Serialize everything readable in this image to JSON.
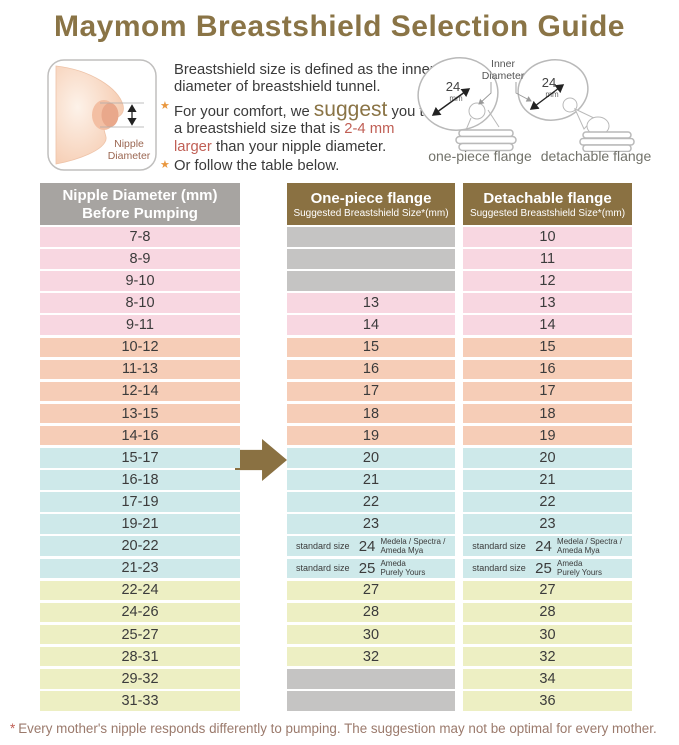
{
  "title": "Maymom Breastshield Selection Guide",
  "info": {
    "illustration": {
      "label_line1": "Nipple",
      "label_line2": "Diameter"
    },
    "lines": [
      {
        "star": false,
        "segments": [
          {
            "text": "Breastshield size is defined as the inner diameter of breastshield tunnel."
          }
        ]
      },
      {
        "star": true,
        "segments": [
          {
            "text": "For your comfort, we "
          },
          {
            "text": "suggest",
            "style": "suggest"
          },
          {
            "text": " you try a breastshield size that is "
          },
          {
            "text": "2-4 mm larger",
            "style": "red"
          },
          {
            "text": " than your nipple diameter."
          }
        ]
      },
      {
        "star": true,
        "segments": [
          {
            "text": "Or follow the table below."
          }
        ]
      }
    ],
    "diagram": {
      "inner_label_line1": "Inner",
      "inner_label_line2": "Diameter",
      "flange1": {
        "size": "24",
        "unit": "mm",
        "label": "one-piece flange"
      },
      "flange2": {
        "size": "24",
        "unit": "mm",
        "label": "detachable flange"
      }
    }
  },
  "table": {
    "headers": {
      "col1_line1": "Nipple Diameter (mm)",
      "col1_line2": "Before Pumping",
      "col2_line1": "One-piece flange",
      "col2_line2": "Suggested Breastshield Size*(mm)",
      "col3_line1": "Detachable flange",
      "col3_line2": "Suggested Breastshield Size*(mm)"
    },
    "rows": [
      {
        "color": "pink",
        "nipple": "7-8",
        "one_piece": null,
        "detachable": "10"
      },
      {
        "color": "pink",
        "nipple": "8-9",
        "one_piece": null,
        "detachable": "11"
      },
      {
        "color": "pink",
        "nipple": "9-10",
        "one_piece": null,
        "detachable": "12"
      },
      {
        "color": "pink",
        "nipple": "8-10",
        "one_piece": "13",
        "detachable": "13"
      },
      {
        "color": "pink",
        "nipple": "9-11",
        "one_piece": "14",
        "detachable": "14"
      },
      {
        "color": "salmon",
        "nipple": "10-12",
        "one_piece": "15",
        "detachable": "15"
      },
      {
        "color": "salmon",
        "nipple": "11-13",
        "one_piece": "16",
        "detachable": "16"
      },
      {
        "color": "salmon",
        "nipple": "12-14",
        "one_piece": "17",
        "detachable": "17"
      },
      {
        "color": "salmon",
        "nipple": "13-15",
        "one_piece": "18",
        "detachable": "18"
      },
      {
        "color": "salmon",
        "nipple": "14-16",
        "one_piece": "19",
        "detachable": "19"
      },
      {
        "color": "blue",
        "nipple": "15-17",
        "one_piece": "20",
        "detachable": "20"
      },
      {
        "color": "blue",
        "nipple": "16-18",
        "one_piece": "21",
        "detachable": "21"
      },
      {
        "color": "blue",
        "nipple": "17-19",
        "one_piece": "22",
        "detachable": "22"
      },
      {
        "color": "blue",
        "nipple": "19-21",
        "one_piece": "23",
        "detachable": "23"
      },
      {
        "color": "blue",
        "nipple": "20-22",
        "one_piece": {
          "label": "standard size",
          "size": "24",
          "brands": "Medela / Spectra /\nAmeda Mya"
        },
        "detachable": {
          "label": "standard size",
          "size": "24",
          "brands": "Medela / Spectra /\nAmeda Mya"
        }
      },
      {
        "color": "blue",
        "nipple": "21-23",
        "one_piece": {
          "label": "standard size",
          "size": "25",
          "brands": "Ameda\nPurely Yours"
        },
        "detachable": {
          "label": "standard size",
          "size": "25",
          "brands": "Ameda\nPurely Yours"
        }
      },
      {
        "color": "yellow",
        "nipple": "22-24",
        "one_piece": "27",
        "detachable": "27"
      },
      {
        "color": "yellow",
        "nipple": "24-26",
        "one_piece": "28",
        "detachable": "28"
      },
      {
        "color": "yellow",
        "nipple": "25-27",
        "one_piece": "30",
        "detachable": "30"
      },
      {
        "color": "yellow",
        "nipple": "28-31",
        "one_piece": "32",
        "detachable": "32"
      },
      {
        "color": "yellow",
        "nipple": "29-32",
        "one_piece": null,
        "detachable": "34"
      },
      {
        "color": "yellow",
        "nipple": "31-33",
        "one_piece": null,
        "detachable": "36"
      }
    ]
  },
  "footer": {
    "star": "*",
    "text": "Every mother's nipple responds differently to pumping. The suggestion may not be optimal for every mother."
  },
  "colors": {
    "accent_brown": "#8a7446",
    "header_gray": "#a7a4a1",
    "header_brown": "#8a7142",
    "pink": "#f8d7e1",
    "salmon": "#f6cdb7",
    "blue": "#cee9ea",
    "yellow": "#edefc3",
    "empty_gray": "#c5c4c3",
    "highlight_red": "#c05f55",
    "star_orange": "#e9973f",
    "footer_brown": "#9b7a6c"
  }
}
